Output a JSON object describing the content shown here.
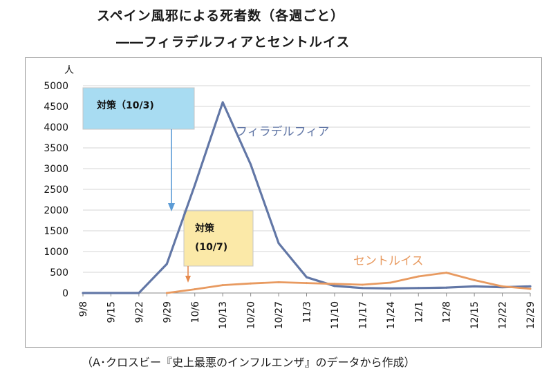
{
  "header": {
    "title": "スペイン風邪による死者数（各週ごと）",
    "subtitle": "――フィラデルフィアとセントルイス"
  },
  "footer": {
    "source": "（A･クロスビー『史上最悪のインフルエンザ』のデータから作成）"
  },
  "chart_data": {
    "type": "line",
    "title": "スペイン風邪による死者数（各週ごと）",
    "subtitle": "――フィラデルフィアとセントルイス",
    "ylabel": "人",
    "xlabel": "",
    "ylim": [
      0,
      5000
    ],
    "yticks": [
      0,
      500,
      1000,
      1500,
      2000,
      2500,
      3000,
      3500,
      4000,
      4500,
      5000
    ],
    "grid": "horizontal",
    "categories": [
      "9/8",
      "9/15",
      "9/22",
      "9/29",
      "10/6",
      "10/13",
      "10/20",
      "10/27",
      "11/3",
      "11/10",
      "11/17",
      "11/24",
      "12/1",
      "12/8",
      "12/15",
      "12/22",
      "12/29"
    ],
    "series": [
      {
        "name": "フィラデルフィア",
        "color": "#6277a6",
        "values": [
          0,
          0,
          0,
          700,
          2600,
          4600,
          3100,
          1200,
          380,
          170,
          120,
          110,
          120,
          130,
          160,
          140,
          160
        ]
      },
      {
        "name": "セントルイス",
        "color": "#e89a60",
        "values": [
          null,
          null,
          null,
          0,
          90,
          190,
          230,
          260,
          240,
          220,
          200,
          250,
          400,
          490,
          310,
          160,
          100
        ]
      }
    ],
    "annotations": [
      {
        "id": "philadelphia",
        "text": "対策（10/3)",
        "color": "#a8dcf2"
      },
      {
        "id": "stlouis",
        "lines": [
          "対策",
          "(10/7)"
        ],
        "color": "#fbe9a8"
      }
    ],
    "source": "（A･クロスビー『史上最悪のインフルエンザ』のデータから作成）"
  }
}
